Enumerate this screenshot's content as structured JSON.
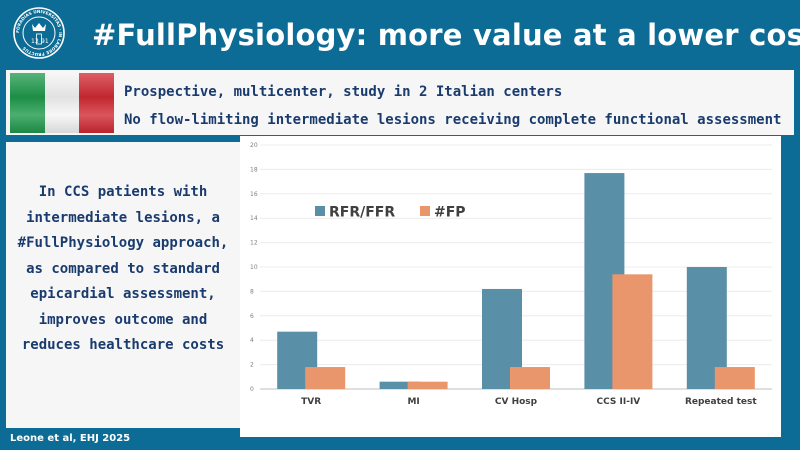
{
  "header": {
    "title": "#FullPhysiology: more value at a lower cost",
    "logo_ring_text": "FORADIAS UNIVERSITAS · IN LABORE FRUCTUS",
    "logo_year_left": "13",
    "logo_year_right": "91"
  },
  "info": {
    "line1": "Prospective, multicenter, study in 2 Italian centers",
    "line2": "No flow-limiting intermediate lesions receiving complete functional assessment",
    "flag_colors": [
      "#1f9a4c",
      "#f5f5f5",
      "#d22a33"
    ]
  },
  "conclusion": {
    "lines": [
      "In CCS patients with",
      "intermediate lesions, a",
      "#FullPhysiology approach,",
      "as compared to standard",
      "epicardial assessment,",
      "improves outcome and",
      "reduces healthcare costs"
    ]
  },
  "footer": {
    "citation": "Leone et al, EHJ 2025"
  },
  "colors": {
    "background": "#0c6c95",
    "title": "#ffffff",
    "text": "#1a3b6e",
    "series_rfr": "#5a8fa8",
    "series_fp": "#e9966c"
  },
  "chart_data": {
    "type": "bar",
    "categories": [
      "TVR",
      "MI",
      "CV Hosp",
      "CCS II-IV",
      "Repeated test"
    ],
    "series": [
      {
        "name": "RFR/FFR",
        "values": [
          4.7,
          0.6,
          8.2,
          17.7,
          10.0
        ],
        "color": "#5a8fa8"
      },
      {
        "name": "#FP",
        "values": [
          1.8,
          0.6,
          1.8,
          9.4,
          1.8
        ],
        "color": "#e9966c"
      }
    ],
    "yticks": [
      "0",
      "2",
      "4",
      "6",
      "8",
      "10",
      "12",
      "14",
      "16",
      "18",
      "20"
    ],
    "ylim": [
      0,
      20
    ],
    "grid": true,
    "legend_position": "top-left",
    "xlabel": "",
    "ylabel": ""
  }
}
